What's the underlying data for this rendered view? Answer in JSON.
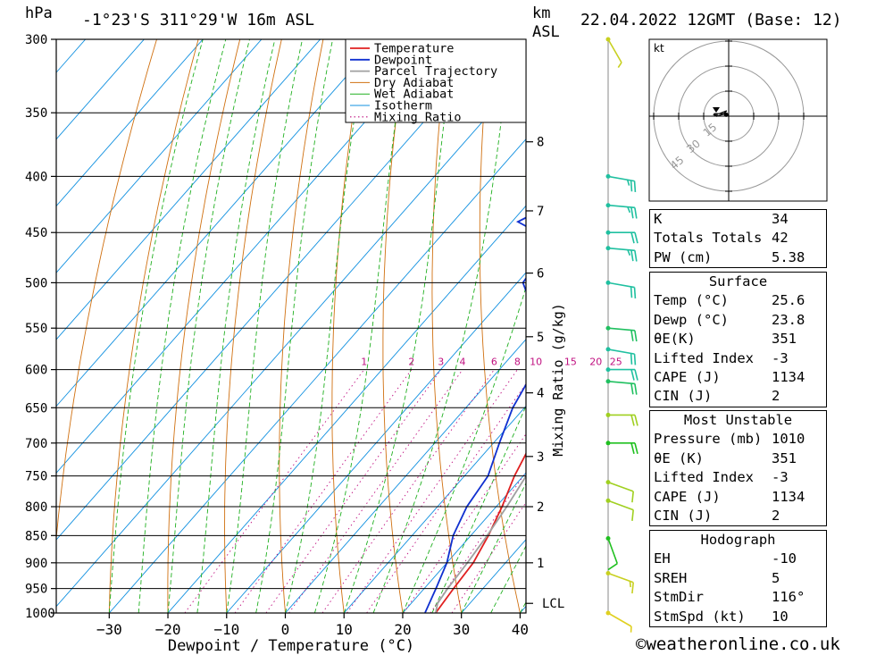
{
  "header": {
    "pressure_unit": "hPa",
    "location": "-1°23'S  311°29'W  16m  ASL",
    "km_label": "km",
    "asl_label": "ASL",
    "datetime": "22.04.2022 12GMT (Base: 12)"
  },
  "legend": [
    "Temperature",
    "Dewpoint",
    "Parcel Trajectory",
    "Dry Adiabat",
    "Wet Adiabat",
    "Isotherm",
    "Mixing Ratio"
  ],
  "colors": {
    "temperature": "#e02020",
    "dewpoint": "#1030d0",
    "parcel": "#a0a0a0",
    "dry_adiabat": "#d07010",
    "wet_adiabat": "#20b020",
    "isotherm": "#1090e0",
    "mixing_ratio": "#c01080"
  },
  "chart_data": {
    "type": "line",
    "xlabel": "Dewpoint / Temperature (°C)",
    "ylabel": "hPa",
    "right_label": "Mixing Ratio (g/kg)",
    "xlim": [
      -40,
      40
    ],
    "ylim": [
      1000,
      300
    ],
    "y_scale": "log",
    "x_ticks": [
      "-30",
      "-20",
      "-10",
      "0",
      "10",
      "20",
      "30",
      "40"
    ],
    "pressure_levels": [
      300,
      350,
      400,
      450,
      500,
      550,
      600,
      650,
      700,
      750,
      800,
      850,
      900,
      950,
      1000
    ],
    "km_ticks": [
      {
        "label": "1",
        "p": 900
      },
      {
        "label": "2",
        "p": 800
      },
      {
        "label": "3",
        "p": 720
      },
      {
        "label": "4",
        "p": 630
      },
      {
        "label": "5",
        "p": 560
      },
      {
        "label": "6",
        "p": 490
      },
      {
        "label": "7",
        "p": 430
      },
      {
        "label": "8",
        "p": 372
      }
    ],
    "lcl_label": "LCL",
    "lcl_p": 980,
    "mixing_ratio_labels": [
      "1",
      "2",
      "3",
      "4",
      "6",
      "8",
      "10",
      "15",
      "20",
      "25"
    ],
    "series": [
      {
        "name": "Temperature",
        "points": [
          [
            1000,
            25.6
          ],
          [
            950,
            25.0
          ],
          [
            900,
            24.5
          ],
          [
            850,
            23.0
          ],
          [
            800,
            21.0
          ],
          [
            750,
            18.5
          ],
          [
            700,
            16.5
          ],
          [
            650,
            14.5
          ],
          [
            600,
            11.5
          ],
          [
            550,
            9.0
          ],
          [
            500,
            6.0
          ],
          [
            450,
            2.5
          ],
          [
            400,
            0.5
          ],
          [
            380,
            -1.0
          ],
          [
            370,
            -1.2
          ],
          [
            360,
            -3.0
          ],
          [
            340,
            -4.0
          ],
          [
            320,
            -5.0
          ],
          [
            300,
            -6.0
          ]
        ]
      },
      {
        "name": "Dewpoint",
        "points": [
          [
            1000,
            23.8
          ],
          [
            950,
            22.0
          ],
          [
            900,
            20.0
          ],
          [
            850,
            17.0
          ],
          [
            800,
            15.0
          ],
          [
            750,
            14.0
          ],
          [
            700,
            11.0
          ],
          [
            650,
            8.0
          ],
          [
            600,
            6.0
          ],
          [
            580,
            4.0
          ],
          [
            560,
            0.5
          ],
          [
            520,
            -5.0
          ],
          [
            500,
            -9.0
          ],
          [
            470,
            -10.0
          ],
          [
            450,
            -14.0
          ],
          [
            440,
            -19.0
          ],
          [
            430,
            -17.0
          ],
          [
            420,
            -19.0
          ],
          [
            400,
            -19.0
          ],
          [
            385,
            -17.0
          ],
          [
            375,
            -13.0
          ],
          [
            370,
            -17.0
          ],
          [
            365,
            -20.0
          ],
          [
            355,
            -14.0
          ],
          [
            345,
            -14.0
          ],
          [
            340,
            -15.0
          ],
          [
            330,
            -12.0
          ],
          [
            320,
            -11.0
          ],
          [
            300,
            -11.0
          ]
        ]
      },
      {
        "name": "Parcel Trajectory",
        "points": [
          [
            1000,
            25.6
          ],
          [
            980,
            24.5
          ],
          [
            950,
            24.0
          ],
          [
            900,
            23.5
          ],
          [
            850,
            22.8
          ],
          [
            800,
            21.8
          ],
          [
            750,
            20.5
          ],
          [
            700,
            19.0
          ],
          [
            650,
            17.0
          ],
          [
            600,
            15.0
          ],
          [
            550,
            12.0
          ],
          [
            500,
            8.5
          ],
          [
            450,
            4.5
          ],
          [
            400,
            0.0
          ],
          [
            370,
            -3.0
          ]
        ]
      }
    ]
  },
  "wind_barbs": [
    {
      "p": 300,
      "dir": 150,
      "speed": 5,
      "color": "#c8d020"
    },
    {
      "p": 400,
      "dir": 100,
      "speed": 25,
      "color": "#20c0a0"
    },
    {
      "p": 425,
      "dir": 95,
      "speed": 25,
      "color": "#20c0a0"
    },
    {
      "p": 450,
      "dir": 90,
      "speed": 20,
      "color": "#20c0a0"
    },
    {
      "p": 465,
      "dir": 95,
      "speed": 25,
      "color": "#20c0a0"
    },
    {
      "p": 500,
      "dir": 100,
      "speed": 20,
      "color": "#20c0a0"
    },
    {
      "p": 550,
      "dir": 95,
      "speed": 20,
      "color": "#20c060"
    },
    {
      "p": 575,
      "dir": 100,
      "speed": 20,
      "color": "#20c0a0"
    },
    {
      "p": 600,
      "dir": 90,
      "speed": 20,
      "color": "#20c0a0"
    },
    {
      "p": 615,
      "dir": 95,
      "speed": 20,
      "color": "#20c060"
    },
    {
      "p": 660,
      "dir": 90,
      "speed": 20,
      "color": "#a0d020"
    },
    {
      "p": 700,
      "dir": 90,
      "speed": 20,
      "color": "#20c020"
    },
    {
      "p": 760,
      "dir": 110,
      "speed": 10,
      "color": "#a0d020"
    },
    {
      "p": 790,
      "dir": 110,
      "speed": 10,
      "color": "#a0d020"
    },
    {
      "p": 855,
      "dir": 160,
      "speed": 10,
      "color": "#20c020"
    },
    {
      "p": 920,
      "dir": 110,
      "speed": 15,
      "color": "#c8d020"
    },
    {
      "p": 1000,
      "dir": 120,
      "speed": 5,
      "color": "#e0d020"
    }
  ],
  "hodograph": {
    "unit": "kt",
    "ring_labels": [
      "15",
      "30",
      "45"
    ]
  },
  "indices": {
    "k_label": "K",
    "k": "34",
    "tt_label": "Totals Totals",
    "tt": "42",
    "pw_label": "PW (cm)",
    "pw": "5.38"
  },
  "surface": {
    "title": "Surface",
    "temp_label": "Temp (°C)",
    "temp": "25.6",
    "dewp_label": "Dewp (°C)",
    "dewp": "23.8",
    "theta_label": "θE(K)",
    "theta": "351",
    "li_label": "Lifted Index",
    "li": "-3",
    "cape_label": "CAPE (J)",
    "cape": "1134",
    "cin_label": "CIN (J)",
    "cin": "2"
  },
  "most_unstable": {
    "title": "Most Unstable",
    "pres_label": "Pressure (mb)",
    "pres": "1010",
    "theta_label": "θE (K)",
    "theta": "351",
    "li_label": "Lifted Index",
    "li": "-3",
    "cape_label": "CAPE (J)",
    "cape": "1134",
    "cin_label": "CIN (J)",
    "cin": "2"
  },
  "hodo_table": {
    "title": "Hodograph",
    "eh_label": "EH",
    "eh": "-10",
    "sreh_label": "SREH",
    "sreh": "5",
    "stmdir_label": "StmDir",
    "stmdir": "116°",
    "stmspd_label": "StmSpd (kt)",
    "stmspd": "10"
  },
  "footer": {
    "copyright_symbol": "©",
    "site": "weatheronline.co.uk"
  }
}
